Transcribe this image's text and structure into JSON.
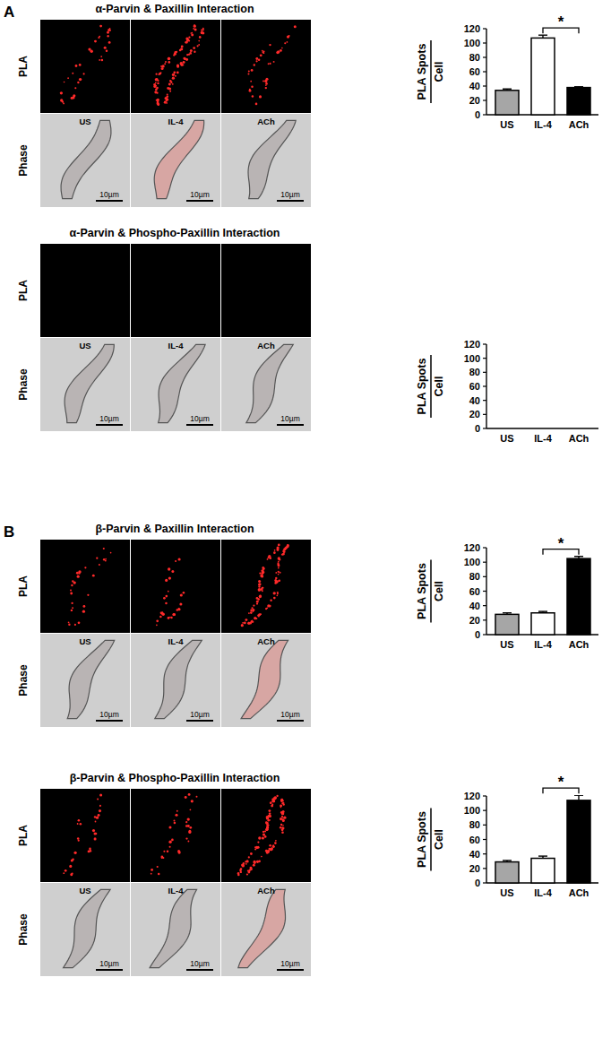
{
  "panel_labels": [
    "A",
    "B"
  ],
  "image_rows": [
    "PLA",
    "Phase"
  ],
  "scale_bar": "10µm",
  "chart_data": [
    {
      "type": "bar",
      "title": "α-Parvin & Paxillin Interaction",
      "categories": [
        "US",
        "IL-4",
        "ACh"
      ],
      "values": [
        34,
        107,
        38
      ],
      "errors": [
        2,
        4,
        1
      ],
      "colors": [
        "#a6a6a6",
        "#ffffff",
        "#000000"
      ],
      "ylim": [
        0,
        120
      ],
      "yticks": [
        0,
        20,
        40,
        60,
        80,
        100,
        120
      ],
      "ylabel": [
        "PLA Spots",
        "Cell"
      ],
      "annotations": [
        {
          "text": "*",
          "from": "IL-4",
          "to": "ACh"
        }
      ]
    },
    {
      "type": "bar",
      "title": "α-Parvin & Phospho-Paxillin Interaction",
      "categories": [
        "US",
        "IL-4",
        "ACh"
      ],
      "values": [
        0,
        0,
        0
      ],
      "errors": [
        0,
        0,
        0
      ],
      "colors": [
        "#a6a6a6",
        "#ffffff",
        "#000000"
      ],
      "ylim": [
        0,
        120
      ],
      "yticks": [
        0,
        20,
        40,
        60,
        80,
        100,
        120
      ],
      "ylabel": [
        "PLA Spots",
        "Cell"
      ],
      "annotations": []
    },
    {
      "type": "bar",
      "title": "β-Parvin & Paxillin Interaction",
      "categories": [
        "US",
        "IL-4",
        "ACh"
      ],
      "values": [
        28,
        30,
        105
      ],
      "errors": [
        2,
        2,
        3
      ],
      "colors": [
        "#a6a6a6",
        "#ffffff",
        "#000000"
      ],
      "ylim": [
        0,
        120
      ],
      "yticks": [
        0,
        20,
        40,
        60,
        80,
        100,
        120
      ],
      "ylabel": [
        "PLA Spots",
        "Cell"
      ],
      "annotations": [
        {
          "text": "*",
          "from": "IL-4",
          "to": "ACh"
        }
      ]
    },
    {
      "type": "bar",
      "title": "β-Parvin & Phospho-Paxillin Interaction",
      "categories": [
        "US",
        "IL-4",
        "ACh"
      ],
      "values": [
        29,
        34,
        114
      ],
      "errors": [
        2,
        3,
        7
      ],
      "colors": [
        "#a6a6a6",
        "#ffffff",
        "#000000"
      ],
      "ylim": [
        0,
        120
      ],
      "yticks": [
        0,
        20,
        40,
        60,
        80,
        100,
        120
      ],
      "ylabel": [
        "PLA Spots",
        "Cell"
      ],
      "annotations": [
        {
          "text": "*",
          "from": "IL-4",
          "to": "ACh"
        }
      ]
    }
  ]
}
